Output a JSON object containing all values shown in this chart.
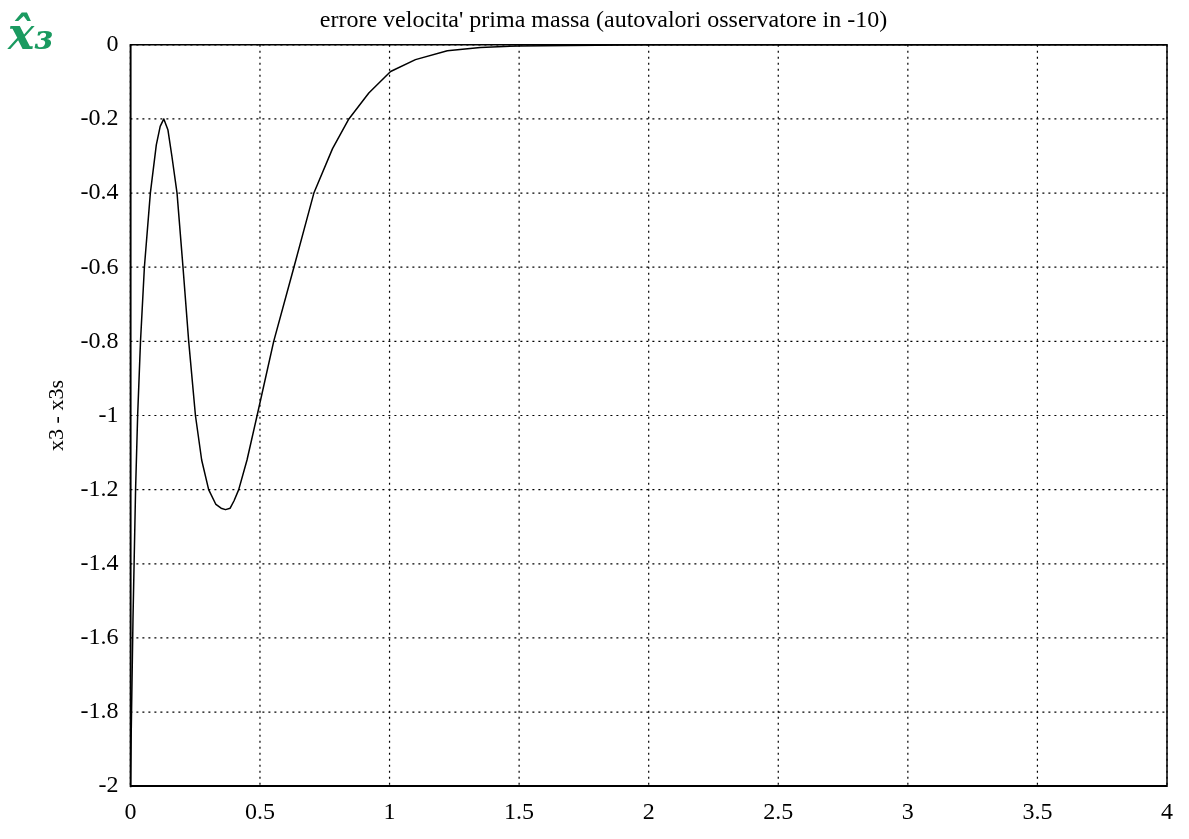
{
  "chart_data": {
    "type": "line",
    "title": "errore velocita' prima massa (autovalori osservatore in -10)",
    "ylabel": "x3 - x3s",
    "annotations": [
      "x̂₃"
    ],
    "series": [
      {
        "color": "#000000",
        "x": [
          0,
          0.01,
          0.02,
          0.028,
          0.039,
          0.054,
          0.077,
          0.1,
          0.115,
          0.129,
          0.145,
          0.16,
          0.18,
          0.203,
          0.225,
          0.251,
          0.275,
          0.302,
          0.33,
          0.35,
          0.367,
          0.385,
          0.4,
          0.418,
          0.45,
          0.489,
          0.553,
          0.631,
          0.708,
          0.78,
          0.843,
          0.92,
          1.004,
          1.1,
          1.223,
          1.35,
          1.5,
          2,
          2.5,
          3,
          3.5,
          4
        ],
        "values": [
          -2,
          -1.55,
          -1.2,
          -1,
          -0.8,
          -0.6,
          -0.4,
          -0.27,
          -0.22,
          -0.2,
          -0.23,
          -0.3,
          -0.4,
          -0.6,
          -0.8,
          -1,
          -1.12,
          -1.2,
          -1.24,
          -1.25,
          -1.254,
          -1.25,
          -1.23,
          -1.2,
          -1.12,
          -1,
          -0.8,
          -0.6,
          -0.4,
          -0.28,
          -0.2,
          -0.13,
          -0.072,
          -0.04,
          -0.016,
          -0.007,
          -0.003,
          0,
          0,
          0,
          0,
          0
        ]
      }
    ],
    "xlim": [
      0,
      4
    ],
    "xticks": [
      0,
      0.5,
      1,
      1.5,
      2,
      2.5,
      3,
      3.5,
      4
    ],
    "ylim": [
      -2,
      0
    ],
    "yticks": [
      -2,
      -1.8,
      -1.6,
      -1.4,
      -1.2,
      -1,
      -0.8,
      -0.6,
      -0.4,
      -0.2,
      0
    ],
    "grid": true,
    "marker": "none",
    "line_style": "solid"
  }
}
